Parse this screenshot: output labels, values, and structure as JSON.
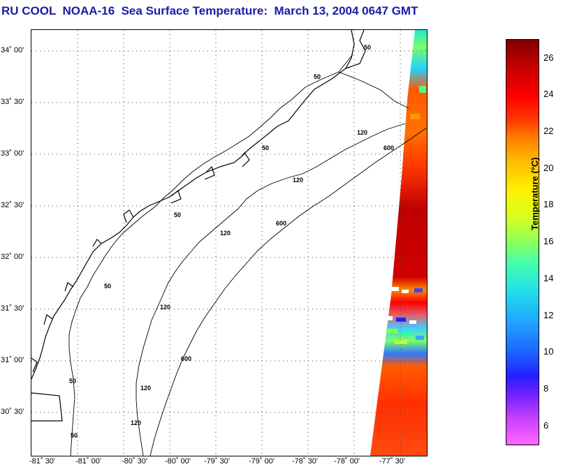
{
  "title": "RU COOL  NOAA-16  Sea Surface Temperature:  March 13, 2004 0647 GMT",
  "latitude_labels": [
    "34˚ 00'",
    "33˚ 30'",
    "33˚ 00'",
    "32˚ 30'",
    "32˚ 00'",
    "31˚ 30'",
    "31˚ 00'",
    "30˚ 30'"
  ],
  "longitude_labels": [
    "-81˚ 30'",
    "-81˚ 00'",
    "-80˚ 30'",
    "-80˚ 00'",
    "-79˚ 30'",
    "-79˚ 00'",
    "-78˚ 30'",
    "-78˚ 00'",
    "-77˚ 30'"
  ],
  "isobath_labels": [
    "50",
    "50",
    "50",
    "50",
    "50",
    "50",
    "50",
    "120",
    "120",
    "120",
    "120",
    "120",
    "120",
    "600",
    "600",
    "600"
  ],
  "colorbar": {
    "label": "Temperature (°C)",
    "ticks": [
      "26",
      "24",
      "22",
      "20",
      "18",
      "16",
      "14",
      "12",
      "10",
      "8",
      "6"
    ],
    "min": 5,
    "max": 27
  },
  "colors": {
    "title": "#1a1aa6"
  }
}
